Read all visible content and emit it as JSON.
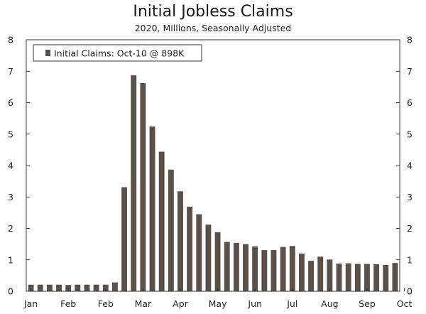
{
  "chart_data": {
    "type": "bar",
    "title": "Initial Jobless Claims",
    "subtitle": "2020, Millions, Seasonally Adjusted",
    "xlabel": "",
    "ylabel": "",
    "ylim": [
      0,
      8
    ],
    "yticks": [
      0,
      1,
      2,
      3,
      4,
      5,
      6,
      7,
      8
    ],
    "x_tick_labels": [
      "Jan",
      "Feb",
      "Feb",
      "Mar",
      "Apr",
      "May",
      "Jun",
      "Jul",
      "Aug",
      "Sep",
      "Oct"
    ],
    "x_tick_label_bar_index": [
      0,
      4,
      8,
      12,
      16,
      20,
      24,
      28,
      32,
      36,
      40
    ],
    "grid": false,
    "legend_position": "top-left",
    "bar_color": "#5b5148",
    "series": [
      {
        "name": "Initial Claims: Oct-10 @ 898K",
        "values": [
          0.21,
          0.21,
          0.21,
          0.21,
          0.2,
          0.21,
          0.21,
          0.21,
          0.21,
          0.28,
          3.31,
          6.87,
          6.62,
          5.24,
          4.44,
          3.87,
          3.18,
          2.69,
          2.45,
          2.12,
          1.88,
          1.57,
          1.54,
          1.5,
          1.43,
          1.31,
          1.31,
          1.41,
          1.44,
          1.2,
          0.97,
          1.1,
          1.01,
          0.88,
          0.89,
          0.87,
          0.87,
          0.86,
          0.84,
          0.9
        ]
      }
    ]
  }
}
